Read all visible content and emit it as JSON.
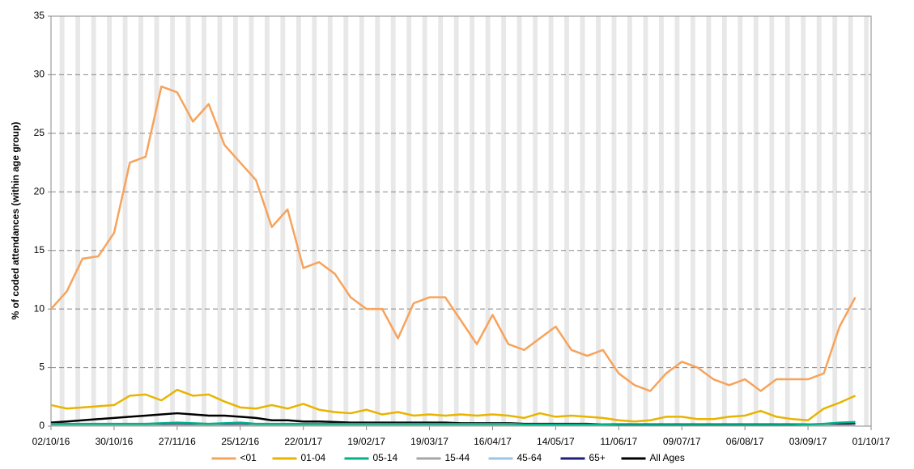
{
  "chart_data": {
    "type": "line",
    "y_label": "% of coded attendances (within age group)",
    "categories": [
      "02/10/16",
      null,
      null,
      null,
      "30/10/16",
      null,
      null,
      null,
      "27/11/16",
      null,
      null,
      null,
      "25/12/16",
      null,
      null,
      null,
      "22/01/17",
      null,
      null,
      null,
      "19/02/17",
      null,
      null,
      null,
      "19/03/17",
      null,
      null,
      null,
      "16/04/17",
      null,
      null,
      null,
      "14/05/17",
      null,
      null,
      null,
      "11/06/17",
      null,
      null,
      null,
      "09/07/17",
      null,
      null,
      null,
      "06/08/17",
      null,
      null,
      null,
      "03/09/17",
      null,
      null,
      null,
      "01/10/17"
    ],
    "ylim": [
      0,
      35
    ],
    "yticks": [
      0,
      5,
      10,
      15,
      20,
      25,
      30,
      35
    ],
    "grid": true,
    "legend": "bottom",
    "series": [
      {
        "name": "<01",
        "color": "#f7a35c",
        "values": [
          10,
          11.5,
          14.3,
          14.5,
          16.5,
          22.5,
          23,
          29,
          28.5,
          26,
          27.5,
          24,
          22.5,
          21,
          17,
          18.5,
          13.5,
          14,
          13,
          11,
          10,
          10,
          7.5,
          10.5,
          11,
          11,
          9,
          7,
          9.5,
          7,
          6.5,
          7.5,
          8.5,
          6.5,
          6,
          6.5,
          4.5,
          3.5,
          3,
          4.5,
          5.5,
          5,
          4,
          3.5,
          4,
          3,
          4,
          4,
          4,
          4.5,
          8.5,
          11,
          null
        ]
      },
      {
        "name": "01-04",
        "color": "#e8b400",
        "values": [
          1.8,
          1.5,
          1.6,
          1.7,
          1.8,
          2.6,
          2.7,
          2.2,
          3.1,
          2.6,
          2.7,
          2.1,
          1.6,
          1.5,
          1.8,
          1.5,
          1.9,
          1.4,
          1.2,
          1.1,
          1.4,
          1,
          1.2,
          0.9,
          1,
          0.9,
          1,
          0.9,
          1,
          0.9,
          0.7,
          1.1,
          0.8,
          0.9,
          0.8,
          0.7,
          0.5,
          0.4,
          0.5,
          0.8,
          0.8,
          0.6,
          0.6,
          0.8,
          0.9,
          1.3,
          0.8,
          0.6,
          0.5,
          1.5,
          2,
          2.6,
          null
        ]
      },
      {
        "name": "05-14",
        "color": "#00b386",
        "values": [
          0.2,
          0.2,
          0.2,
          0.2,
          0.2,
          0.2,
          0.2,
          0.25,
          0.3,
          0.25,
          0.2,
          0.25,
          0.3,
          0.2,
          0.2,
          0.2,
          0.2,
          0.2,
          0.2,
          0.2,
          0.2,
          0.2,
          0.2,
          0.2,
          0.2,
          0.2,
          0.2,
          0.2,
          0.2,
          0.2,
          0.15,
          0.15,
          0.15,
          0.15,
          0.15,
          0.15,
          0.1,
          0.1,
          0.1,
          0.1,
          0.1,
          0.1,
          0.1,
          0.1,
          0.1,
          0.1,
          0.1,
          0.1,
          0.15,
          0.2,
          0.3,
          0.35,
          null
        ]
      },
      {
        "name": "15-44",
        "color": "#a6a6a6",
        "values": [
          0.05,
          0.05,
          0.05,
          0.05,
          0.05,
          0.05,
          0.05,
          0.05,
          0.05,
          0.05,
          0.05,
          0.05,
          0.05,
          0.05,
          0.05,
          0.05,
          0.05,
          0.05,
          0.05,
          0.05,
          0.05,
          0.05,
          0.05,
          0.05,
          0.05,
          0.05,
          0.05,
          0.05,
          0.05,
          0.05,
          0.05,
          0.05,
          0.05,
          0.05,
          0.05,
          0.05,
          0.05,
          0.05,
          0.05,
          0.05,
          0.05,
          0.05,
          0.05,
          0.05,
          0.05,
          0.05,
          0.05,
          0.05,
          0.05,
          0.05,
          0.05,
          0.05,
          null
        ]
      },
      {
        "name": "45-64",
        "color": "#9dc3e6",
        "values": [
          0.05,
          0.05,
          0.05,
          0.05,
          0.05,
          0.05,
          0.05,
          0.05,
          0.05,
          0.05,
          0.05,
          0.05,
          0.05,
          0.05,
          0.05,
          0.05,
          0.05,
          0.05,
          0.05,
          0.05,
          0.05,
          0.05,
          0.05,
          0.05,
          0.05,
          0.05,
          0.05,
          0.05,
          0.05,
          0.05,
          0.05,
          0.05,
          0.05,
          0.05,
          0.05,
          0.05,
          0.05,
          0.05,
          0.05,
          0.05,
          0.05,
          0.05,
          0.05,
          0.05,
          0.05,
          0.05,
          0.05,
          0.05,
          0.05,
          0.05,
          0.05,
          0.05,
          null
        ]
      },
      {
        "name": "65+",
        "color": "#1f1f7a",
        "values": [
          0.1,
          0.1,
          0.1,
          0.1,
          0.1,
          0.1,
          0.1,
          0.1,
          0.1,
          0.1,
          0.1,
          0.1,
          0.1,
          0.1,
          0.1,
          0.1,
          0.1,
          0.1,
          0.1,
          0.1,
          0.1,
          0.1,
          0.1,
          0.1,
          0.1,
          0.1,
          0.1,
          0.1,
          0.1,
          0.1,
          0.1,
          0.1,
          0.1,
          0.1,
          0.1,
          0.1,
          0.1,
          0.1,
          0.1,
          0.1,
          0.1,
          0.1,
          0.1,
          0.1,
          0.1,
          0.1,
          0.1,
          0.1,
          0.1,
          0.1,
          0.1,
          0.1,
          null
        ]
      },
      {
        "name": "All Ages",
        "color": "#000000",
        "values": [
          0.3,
          0.4,
          0.5,
          0.6,
          0.7,
          0.8,
          0.9,
          1,
          1.1,
          1,
          0.9,
          0.9,
          0.8,
          0.7,
          0.5,
          0.5,
          0.4,
          0.4,
          0.35,
          0.3,
          0.3,
          0.3,
          0.3,
          0.3,
          0.3,
          0.3,
          0.25,
          0.25,
          0.25,
          0.25,
          0.2,
          0.2,
          0.2,
          0.2,
          0.2,
          0.15,
          0.15,
          0.15,
          0.15,
          0.15,
          0.15,
          0.15,
          0.15,
          0.15,
          0.15,
          0.15,
          0.15,
          0.15,
          0.15,
          0.15,
          0.2,
          0.3,
          null
        ]
      }
    ]
  }
}
